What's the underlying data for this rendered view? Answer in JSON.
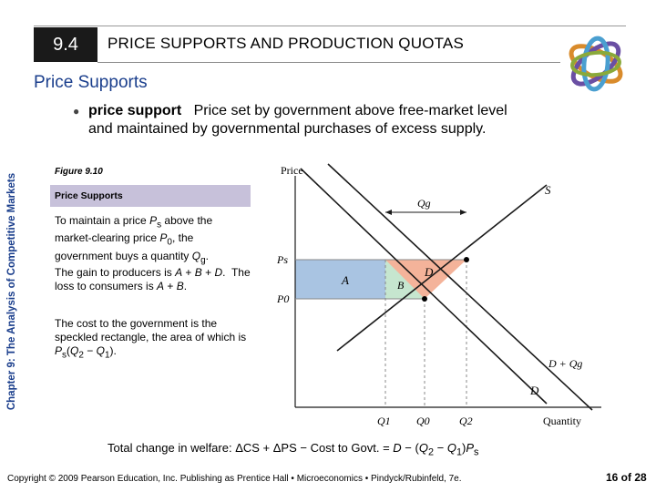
{
  "header": {
    "section_number": "9.4",
    "title": "PRICE SUPPORTS AND PRODUCTION QUOTAS"
  },
  "subtitle": "Price Supports",
  "side_label": "Chapter 9: The Analysis of Competitive Markets",
  "bullet": {
    "term": "price support",
    "definition": "Price set by government above free-market level and maintained by governmental purchases of excess supply."
  },
  "figure": {
    "label": "Figure 9.10",
    "title": "Price Supports",
    "captions": [
      "To maintain a price Ps above the market-clearing price P0, the government buys a quantity Qg.",
      "The gain to producers is A + B + D. The loss to consumers is A + B.",
      "The cost to the government is the speckled rectangle, the area of which is Ps(Q2 − Q1)."
    ]
  },
  "graph": {
    "y_axis_label": "Price",
    "x_axis_label": "Quantity",
    "supply_label": "S",
    "demand_label": "D",
    "shifted_demand_label": "D + Qg",
    "price_labels": {
      "ps": "Ps",
      "p0": "P0"
    },
    "quantity_labels": {
      "q1": "Q1",
      "q0": "Q0",
      "q2": "Q2"
    },
    "gov_purchase_label": "Qg",
    "area_labels": {
      "a": "A",
      "b": "B",
      "d": "D"
    },
    "colors": {
      "area_a": "#a9c4e2",
      "area_b": "#c6e6cf",
      "area_d": "#f4b39a",
      "curves": "#1a1a1a",
      "guides": "#888888"
    }
  },
  "welfare": "Total change in welfare: ΔCS + ΔPS − Cost to Govt. = D − (Q2 − Q1)Ps",
  "footer": {
    "copyright": "Copyright © 2009 Pearson Education, Inc. Publishing as Prentice Hall • Microeconomics • Pindyck/Rubinfeld, 7e.",
    "page": "16 of 28"
  }
}
